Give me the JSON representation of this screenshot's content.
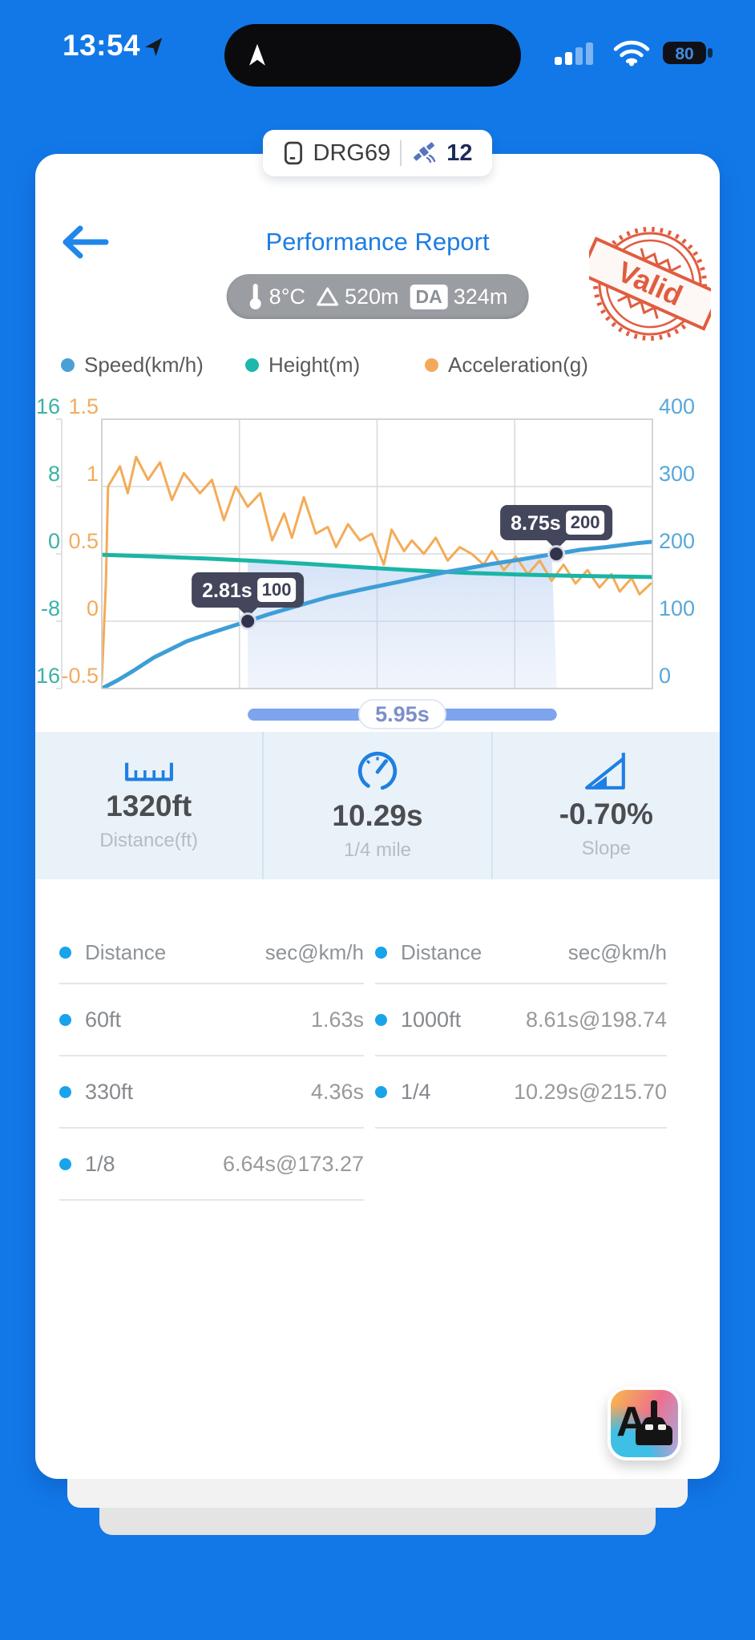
{
  "status_bar": {
    "time": "13:54",
    "battery": "80"
  },
  "device_tab": {
    "name": "DRG69",
    "satellite_count": "12"
  },
  "header": {
    "title": "Performance Report",
    "stamp_text": "Valid",
    "temperature": "8°C",
    "altitude": "520m",
    "da_label": "DA",
    "da_value": "324m"
  },
  "legend": [
    {
      "label": "Speed(km/h)",
      "color": "#4aa0d6"
    },
    {
      "label": "Height(m)",
      "color": "#1db8ad"
    },
    {
      "label": "Acceleration(g)",
      "color": "#f3a95c"
    }
  ],
  "chart_data": {
    "type": "line",
    "x_range": [
      0,
      10.6
    ],
    "grid": true,
    "axes": {
      "height": {
        "label": "Height(m)",
        "ticks": [
          16,
          8,
          0,
          -8,
          -16
        ],
        "color": "#3bb2a6",
        "side": "left-outer"
      },
      "acceleration": {
        "label": "Acceleration(g)",
        "ticks": [
          1.5,
          1,
          0.5,
          0,
          -0.5
        ],
        "color": "#f2ab5e",
        "side": "left"
      },
      "speed": {
        "label": "Speed(km/h)",
        "ticks": [
          400,
          300,
          200,
          100,
          0
        ],
        "color": "#58a8da",
        "side": "right"
      }
    },
    "series": [
      {
        "name": "Acceleration(g)",
        "axis": "acceleration",
        "color": "#f4ab57",
        "width": 3,
        "points": [
          [
            0,
            -0.45
          ],
          [
            0.08,
            0.3
          ],
          [
            0.12,
            1.0
          ],
          [
            0.35,
            1.15
          ],
          [
            0.5,
            0.95
          ],
          [
            0.66,
            1.22
          ],
          [
            0.89,
            1.05
          ],
          [
            1.12,
            1.18
          ],
          [
            1.35,
            0.9
          ],
          [
            1.58,
            1.1
          ],
          [
            1.89,
            0.95
          ],
          [
            2.12,
            1.05
          ],
          [
            2.35,
            0.75
          ],
          [
            2.58,
            1.0
          ],
          [
            2.81,
            0.85
          ],
          [
            3.05,
            0.95
          ],
          [
            3.28,
            0.6
          ],
          [
            3.51,
            0.8
          ],
          [
            3.66,
            0.62
          ],
          [
            3.89,
            0.92
          ],
          [
            4.12,
            0.65
          ],
          [
            4.35,
            0.7
          ],
          [
            4.51,
            0.55
          ],
          [
            4.74,
            0.72
          ],
          [
            4.97,
            0.6
          ],
          [
            5.2,
            0.65
          ],
          [
            5.43,
            0.42
          ],
          [
            5.58,
            0.68
          ],
          [
            5.82,
            0.52
          ],
          [
            5.97,
            0.6
          ],
          [
            6.2,
            0.5
          ],
          [
            6.43,
            0.62
          ],
          [
            6.66,
            0.45
          ],
          [
            6.89,
            0.55
          ],
          [
            7.12,
            0.5
          ],
          [
            7.35,
            0.42
          ],
          [
            7.51,
            0.52
          ],
          [
            7.74,
            0.38
          ],
          [
            7.97,
            0.48
          ],
          [
            8.2,
            0.35
          ],
          [
            8.43,
            0.45
          ],
          [
            8.66,
            0.3
          ],
          [
            8.89,
            0.42
          ],
          [
            9.12,
            0.28
          ],
          [
            9.35,
            0.38
          ],
          [
            9.58,
            0.25
          ],
          [
            9.81,
            0.35
          ],
          [
            9.97,
            0.22
          ],
          [
            10.2,
            0.32
          ],
          [
            10.35,
            0.2
          ],
          [
            10.57,
            0.28
          ]
        ]
      },
      {
        "name": "Height(m)",
        "axis": "height",
        "color": "#1ab5a5",
        "width": 5,
        "points": [
          [
            0,
            -0.1
          ],
          [
            1,
            -0.3
          ],
          [
            2,
            -0.55
          ],
          [
            3,
            -0.85
          ],
          [
            4,
            -1.2
          ],
          [
            5,
            -1.6
          ],
          [
            6,
            -1.95
          ],
          [
            7,
            -2.25
          ],
          [
            8,
            -2.45
          ],
          [
            9,
            -2.6
          ],
          [
            10,
            -2.7
          ],
          [
            10.6,
            -2.75
          ]
        ]
      },
      {
        "name": "Speed(km/h)",
        "axis": "speed",
        "color": "#3e9ed6",
        "width": 5,
        "points": [
          [
            0,
            0
          ],
          [
            0.3,
            12
          ],
          [
            0.6,
            26
          ],
          [
            1,
            46
          ],
          [
            1.63,
            70
          ],
          [
            2,
            80
          ],
          [
            2.4,
            90
          ],
          [
            2.81,
            100
          ],
          [
            3.2,
            110
          ],
          [
            3.6,
            119
          ],
          [
            4,
            128
          ],
          [
            4.36,
            136
          ],
          [
            5,
            147
          ],
          [
            5.5,
            155
          ],
          [
            6,
            163
          ],
          [
            6.64,
            173.27
          ],
          [
            7,
            178
          ],
          [
            7.5,
            185
          ],
          [
            8,
            191
          ],
          [
            8.61,
            198.74
          ],
          [
            8.75,
            200
          ],
          [
            9.2,
            206
          ],
          [
            9.7,
            210
          ],
          [
            10.29,
            215.7
          ],
          [
            10.6,
            218
          ]
        ]
      }
    ],
    "markers": [
      {
        "time": 2.81,
        "speed": 100,
        "time_label": "2.81s",
        "value_label": "100"
      },
      {
        "time": 8.75,
        "speed": 200,
        "time_label": "8.75s",
        "value_label": "200"
      }
    ],
    "selection": {
      "from": 2.81,
      "to": 8.76,
      "label": "5.95s"
    },
    "colors": {
      "grid": "#d9dadb",
      "band_top": "rgba(176,201,240,0.55)",
      "band_bottom": "rgba(205,221,244,0.28)",
      "tooltip_bg": "#44465c",
      "slider_bar": "#7da4ed",
      "slider_text": "#7b8fcb"
    }
  },
  "stats": [
    {
      "icon": "ruler-icon",
      "value": "1320ft",
      "label": "Distance(ft)"
    },
    {
      "icon": "speedometer-icon",
      "value": "10.29s",
      "label": "1/4 mile"
    },
    {
      "icon": "slope-icon",
      "value": "-0.70%",
      "label": "Slope"
    }
  ],
  "table": {
    "left": {
      "header": {
        "label": "Distance",
        "unit": "sec@km/h"
      },
      "rows": [
        {
          "label": "60ft",
          "value": "1.63s"
        },
        {
          "label": "330ft",
          "value": "4.36s"
        },
        {
          "label": "1/8",
          "value": "6.64s@173.27"
        }
      ]
    },
    "right": {
      "header": {
        "label": "Distance",
        "unit": "sec@km/h"
      },
      "rows": [
        {
          "label": "1000ft",
          "value": "8.61s@198.74"
        },
        {
          "label": "1/4",
          "value": "10.29s@215.70"
        }
      ]
    }
  },
  "ai_button": {
    "label": "AI"
  }
}
